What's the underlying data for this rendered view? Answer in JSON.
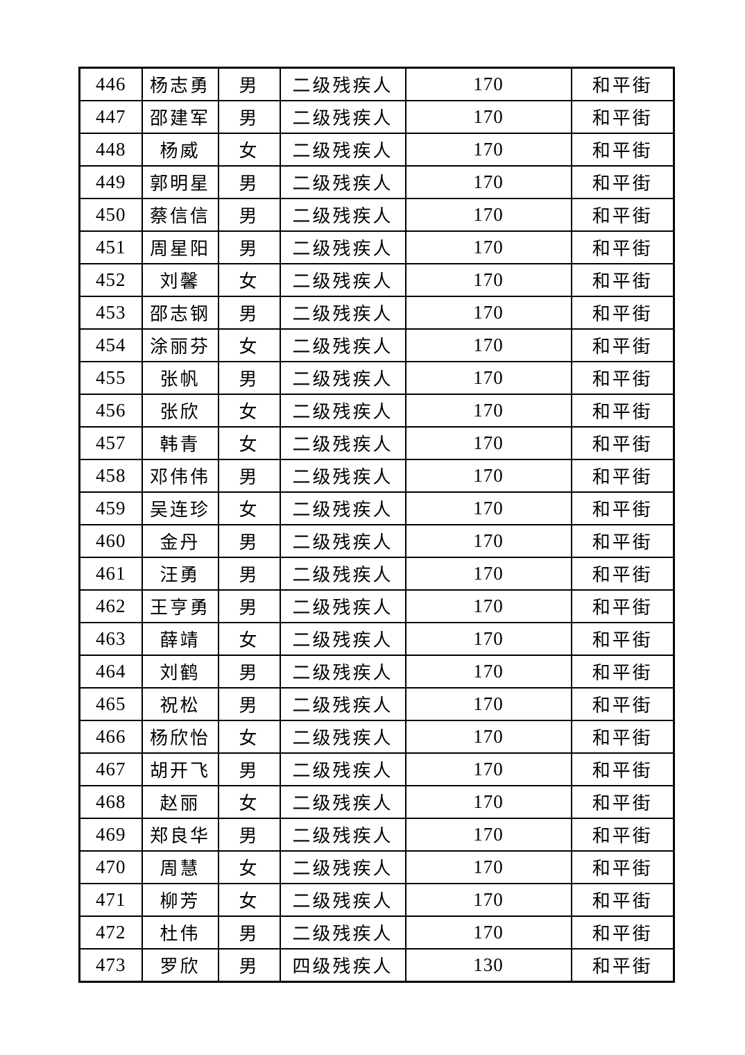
{
  "page": {
    "background": "#ffffff",
    "border_color": "#000000",
    "text_color": "#000000"
  },
  "table": {
    "row_start_number": "446",
    "row_end_number": "473",
    "rows": [
      [
        "446",
        "杨志勇",
        "男",
        "二级残疾人",
        "170",
        "和平街"
      ],
      [
        "447",
        "邵建军",
        "男",
        "二级残疾人",
        "170",
        "和平街"
      ],
      [
        "448",
        "杨威",
        "女",
        "二级残疾人",
        "170",
        "和平街"
      ],
      [
        "449",
        "郭明星",
        "男",
        "二级残疾人",
        "170",
        "和平街"
      ],
      [
        "450",
        "蔡信信",
        "男",
        "二级残疾人",
        "170",
        "和平街"
      ],
      [
        "451",
        "周星阳",
        "男",
        "二级残疾人",
        "170",
        "和平街"
      ],
      [
        "452",
        "刘馨",
        "女",
        "二级残疾人",
        "170",
        "和平街"
      ],
      [
        "453",
        "邵志钢",
        "男",
        "二级残疾人",
        "170",
        "和平街"
      ],
      [
        "454",
        "涂丽芬",
        "女",
        "二级残疾人",
        "170",
        "和平街"
      ],
      [
        "455",
        "张帆",
        "男",
        "二级残疾人",
        "170",
        "和平街"
      ],
      [
        "456",
        "张欣",
        "女",
        "二级残疾人",
        "170",
        "和平街"
      ],
      [
        "457",
        "韩青",
        "女",
        "二级残疾人",
        "170",
        "和平街"
      ],
      [
        "458",
        "邓伟伟",
        "男",
        "二级残疾人",
        "170",
        "和平街"
      ],
      [
        "459",
        "吴连珍",
        "女",
        "二级残疾人",
        "170",
        "和平街"
      ],
      [
        "460",
        "金丹",
        "男",
        "二级残疾人",
        "170",
        "和平街"
      ],
      [
        "461",
        "汪勇",
        "男",
        "二级残疾人",
        "170",
        "和平街"
      ],
      [
        "462",
        "王亨勇",
        "男",
        "二级残疾人",
        "170",
        "和平街"
      ],
      [
        "463",
        "薛靖",
        "女",
        "二级残疾人",
        "170",
        "和平街"
      ],
      [
        "464",
        "刘鹤",
        "男",
        "二级残疾人",
        "170",
        "和平街"
      ],
      [
        "465",
        "祝松",
        "男",
        "二级残疾人",
        "170",
        "和平街"
      ],
      [
        "466",
        "杨欣怡",
        "女",
        "二级残疾人",
        "170",
        "和平街"
      ],
      [
        "467",
        "胡开飞",
        "男",
        "二级残疾人",
        "170",
        "和平街"
      ],
      [
        "468",
        "赵丽",
        "女",
        "二级残疾人",
        "170",
        "和平街"
      ],
      [
        "469",
        "郑良华",
        "男",
        "二级残疾人",
        "170",
        "和平街"
      ],
      [
        "470",
        "周慧",
        "女",
        "二级残疾人",
        "170",
        "和平街"
      ],
      [
        "471",
        "柳芳",
        "女",
        "二级残疾人",
        "170",
        "和平街"
      ],
      [
        "472",
        "杜伟",
        "男",
        "二级残疾人",
        "170",
        "和平街"
      ],
      [
        "473",
        "罗欣",
        "男",
        "四级残疾人",
        "130",
        "和平街"
      ]
    ]
  }
}
